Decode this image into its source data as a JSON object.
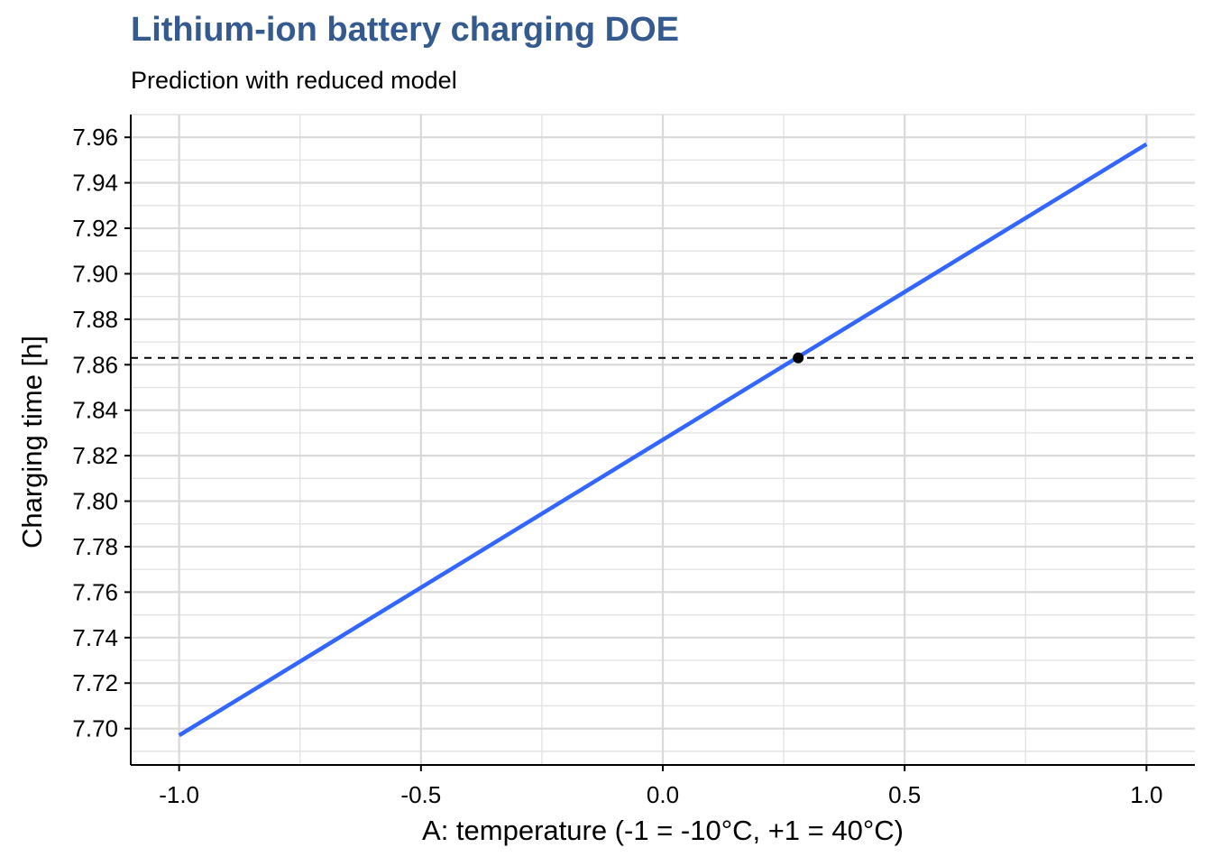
{
  "title": "Lithium-ion battery charging DOE",
  "subtitle": "Prediction with reduced model",
  "chart_data": {
    "type": "line",
    "xlabel": "A: temperature (-1 = -10°C, +1 = 40°C)",
    "ylabel": "Charging time [h]",
    "xlim": [
      -1.1,
      1.1
    ],
    "ylim": [
      7.684,
      7.97
    ],
    "x_ticks": [
      -1.0,
      -0.5,
      0.0,
      0.5,
      1.0
    ],
    "x_tick_labels": [
      "-1.0",
      "-0.5",
      "0.0",
      "0.5",
      "1.0"
    ],
    "y_ticks": [
      7.7,
      7.72,
      7.74,
      7.76,
      7.78,
      7.8,
      7.82,
      7.84,
      7.86,
      7.88,
      7.9,
      7.92,
      7.94,
      7.96
    ],
    "y_tick_labels": [
      "7.70",
      "7.72",
      "7.74",
      "7.76",
      "7.78",
      "7.80",
      "7.82",
      "7.84",
      "7.86",
      "7.88",
      "7.90",
      "7.92",
      "7.94",
      "7.96"
    ],
    "grid": true,
    "series": [
      {
        "x": [
          -1.0,
          1.0
        ],
        "y": [
          7.697,
          7.957
        ],
        "color": "#3366ff"
      }
    ],
    "highlight_point": {
      "x": 0.28,
      "y": 7.863,
      "color": "#000000"
    },
    "hline": {
      "y": 7.863,
      "style": "dashed",
      "color": "#000000"
    }
  }
}
